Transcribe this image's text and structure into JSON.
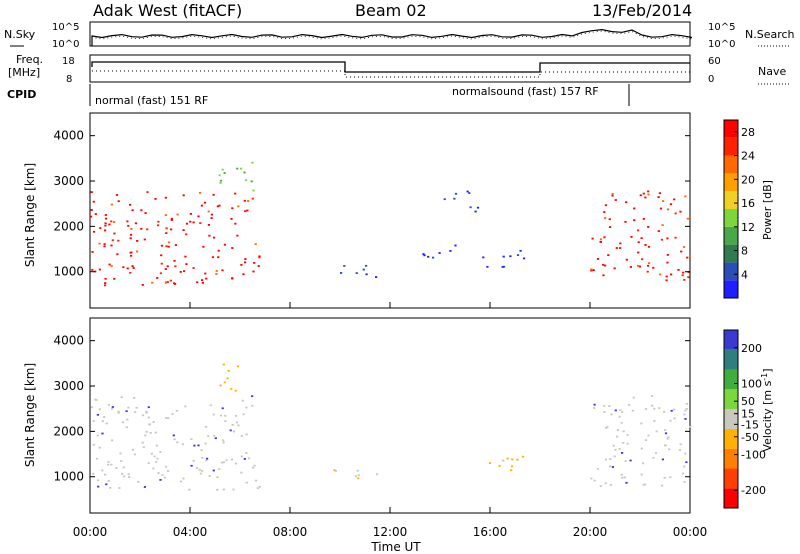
{
  "header": {
    "site": "Adak West (fitACF)",
    "beam": "Beam 02",
    "date": "13/Feb/2014"
  },
  "noise_panel": {
    "left_label": "N.Sky",
    "right_label": "N.Search",
    "left_ticks": [
      "10^5",
      "10^0"
    ],
    "right_ticks": [
      "10^5",
      "10^0"
    ]
  },
  "freq_panel": {
    "left_label_line1": "Freq.",
    "left_label_line2": "[MHz]",
    "right_label": "Nave",
    "left_ticks": [
      "18",
      "8"
    ],
    "right_ticks": [
      "60",
      "0"
    ]
  },
  "cpid_panel": {
    "label": "CPID",
    "segments": [
      {
        "text": "normal (fast) 151 RF",
        "start_h": 0,
        "end_h": 21.5
      },
      {
        "text": "normalsound (fast) 157 RF",
        "start_h": 18,
        "end_h": 21.5
      }
    ]
  },
  "colors": {
    "power": [
      "#1e1eff",
      "#2a4db8",
      "#2f7a4f",
      "#4aa84a",
      "#7dd63c",
      "#f0d020",
      "#ffa000",
      "#ff6a00",
      "#ff2200",
      "#ff0000"
    ],
    "velocity": [
      "#3a3ad0",
      "#2f7f7f",
      "#3fae3f",
      "#7cd73e",
      "#c8c8c0",
      "#ffb000",
      "#ff8000",
      "#ff4000",
      "#ff0000"
    ]
  },
  "x_axis": {
    "label": "Time UT",
    "ticks": [
      "00:00",
      "04:00",
      "08:00",
      "12:00",
      "16:00",
      "20:00",
      "00:00"
    ]
  },
  "chart_data": [
    {
      "type": "heatmap",
      "title": "",
      "ylabel": "Slant Range [km]",
      "xlim": [
        0,
        24
      ],
      "ylim": [
        200,
        4500
      ],
      "yticks": [
        1000,
        2000,
        3000,
        4000
      ],
      "colorbar": {
        "label": "Power [dB]",
        "ticks": [
          4,
          8,
          12,
          16,
          20,
          24,
          28
        ],
        "range": [
          0,
          30
        ]
      },
      "regions": [
        {
          "t": [
            0,
            6.8
          ],
          "r": [
            700,
            1700
          ],
          "level": "high"
        },
        {
          "t": [
            0,
            6.5
          ],
          "r": [
            1700,
            2800
          ],
          "level": "high"
        },
        {
          "t": [
            5,
            6.5
          ],
          "r": [
            2800,
            3500
          ],
          "level": "mid"
        },
        {
          "t": [
            9.5,
            11.5
          ],
          "r": [
            900,
            1200
          ],
          "level": "low"
        },
        {
          "t": [
            13,
            15
          ],
          "r": [
            1300,
            1600
          ],
          "level": "low"
        },
        {
          "t": [
            15.5,
            17.5
          ],
          "r": [
            1100,
            1500
          ],
          "level": "low"
        },
        {
          "t": [
            14,
            15.5
          ],
          "r": [
            2300,
            2800
          ],
          "level": "low"
        },
        {
          "t": [
            20,
            24
          ],
          "r": [
            800,
            2000
          ],
          "level": "high"
        },
        {
          "t": [
            20.5,
            24
          ],
          "r": [
            2000,
            2800
          ],
          "level": "high"
        }
      ]
    },
    {
      "type": "heatmap",
      "title": "",
      "ylabel": "Slant Range [km]",
      "xlim": [
        0,
        24
      ],
      "ylim": [
        200,
        4500
      ],
      "yticks": [
        1000,
        2000,
        3000,
        4000
      ],
      "colorbar": {
        "label": "Velocity [m s^-1]",
        "ticks": [
          200,
          100,
          50,
          15,
          -15,
          -50,
          -100,
          -200
        ],
        "range": [
          -250,
          250
        ]
      },
      "regions": [
        {
          "t": [
            0,
            6.8
          ],
          "r": [
            700,
            1700
          ],
          "level": "near-zero"
        },
        {
          "t": [
            0,
            6.5
          ],
          "r": [
            1700,
            2800
          ],
          "level": "near-zero"
        },
        {
          "t": [
            5,
            6
          ],
          "r": [
            2800,
            3500
          ],
          "level": "negative"
        },
        {
          "t": [
            9.5,
            11.5
          ],
          "r": [
            900,
            1200
          ],
          "level": "negative"
        },
        {
          "t": [
            15.5,
            17.5
          ],
          "r": [
            1100,
            1500
          ],
          "level": "negative"
        },
        {
          "t": [
            20,
            24
          ],
          "r": [
            800,
            2800
          ],
          "level": "near-zero"
        }
      ]
    }
  ]
}
